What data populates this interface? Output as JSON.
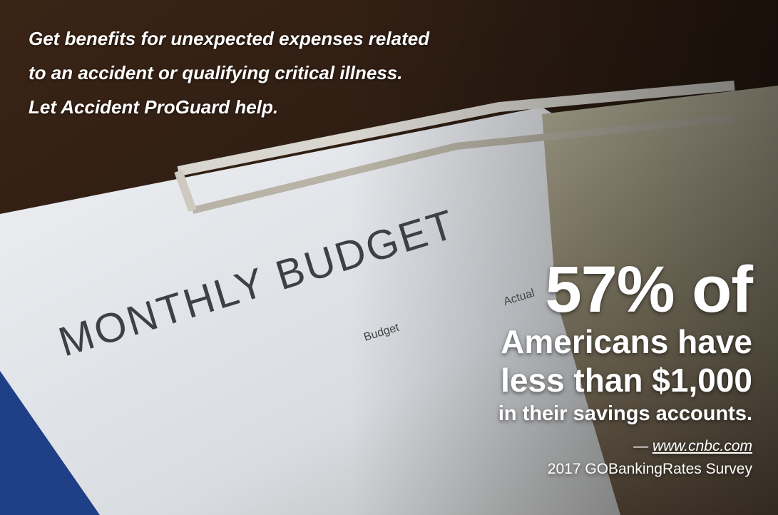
{
  "intro": [
    "Get benefits for unexpected expenses related",
    "to an accident or qualifying critical illness.",
    "Let Accident ProGuard help."
  ],
  "statistic": {
    "headline": "57% of",
    "line1": "Americans have",
    "line2": "less than $1,000",
    "line3": "in their savings accounts."
  },
  "source": {
    "prefix": "—",
    "link": "www.cnbc.com",
    "survey": "2017 GOBankingRates Survey"
  },
  "photo": {
    "heading": "MONTHLY BUDGET",
    "columns": [
      "Budget",
      "Actual"
    ]
  }
}
